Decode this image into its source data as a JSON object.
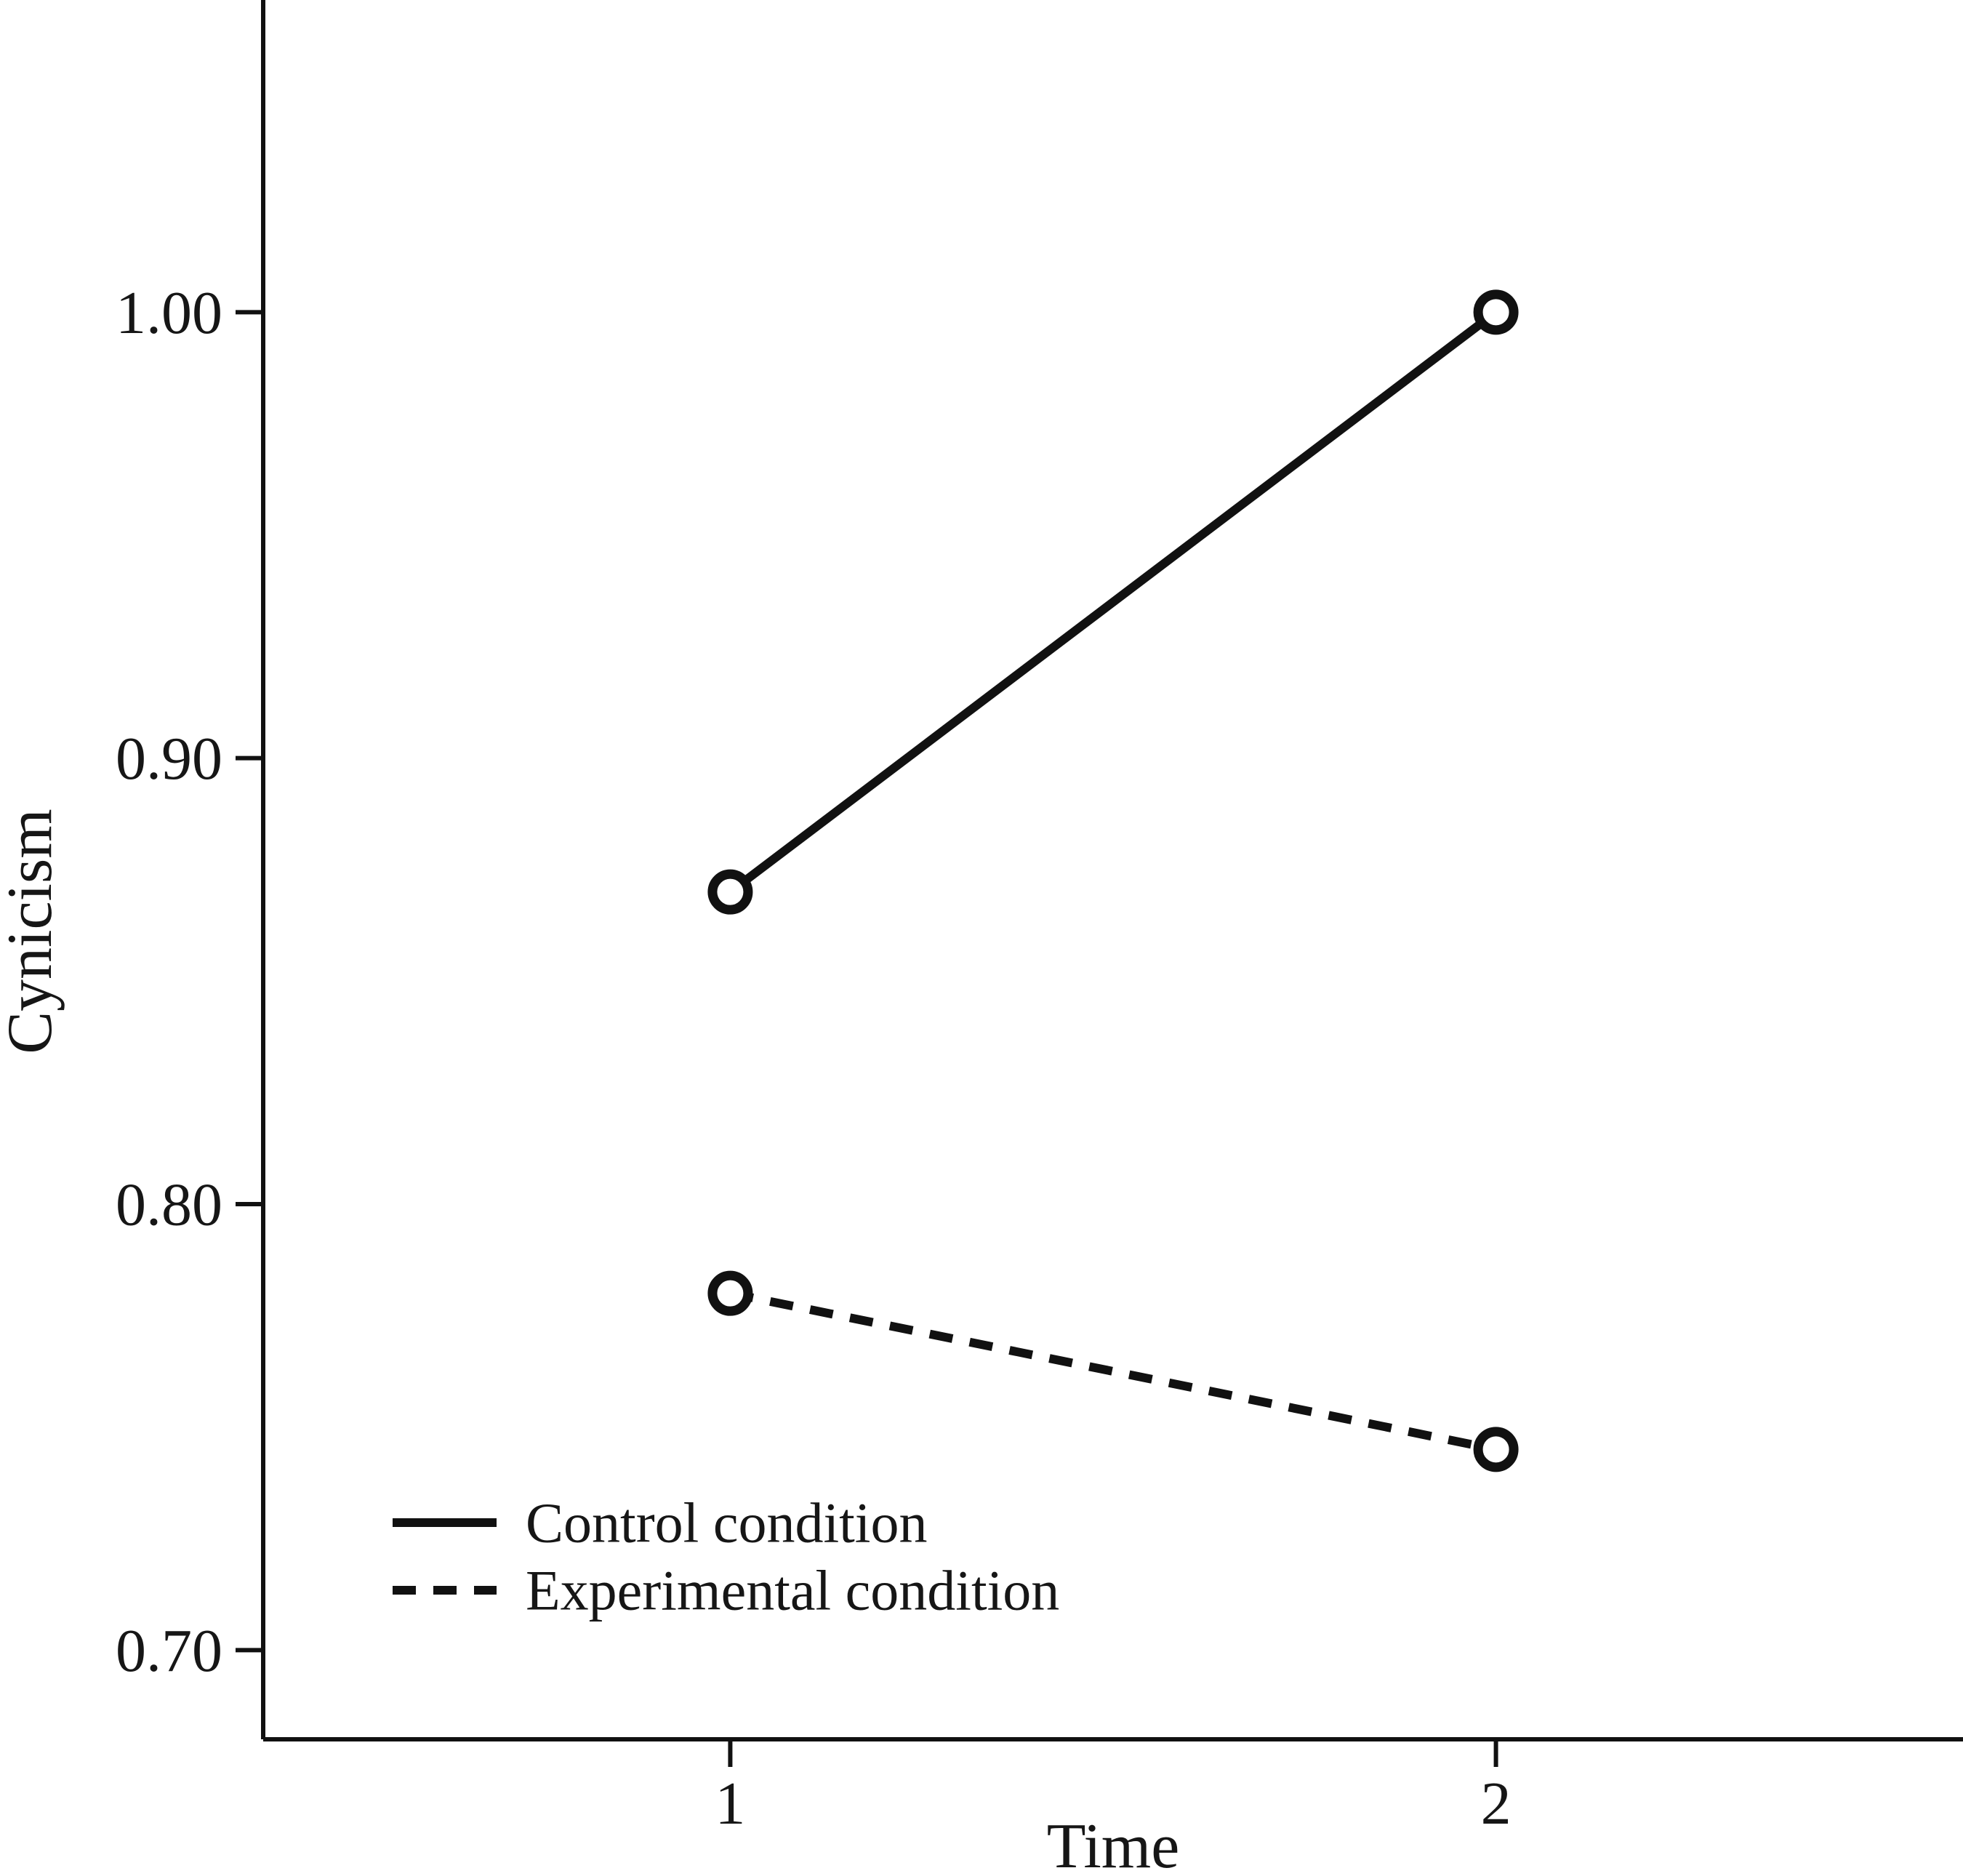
{
  "chart_data": {
    "type": "line",
    "title": "",
    "xlabel": "Time",
    "ylabel": "Cynicism",
    "categories": [
      "1",
      "2"
    ],
    "x_values": [
      1,
      2
    ],
    "x_tick_labels": [
      "1",
      "2"
    ],
    "y_ticks": [
      0.7,
      0.8,
      0.9,
      1.0
    ],
    "y_tick_labels": [
      "0.70",
      "0.80",
      "0.90",
      "1.00"
    ],
    "xlim": [
      0.39,
      2.61
    ],
    "ylim": [
      0.68,
      1.07
    ],
    "grid": false,
    "legend_position": "inside-lower-left",
    "series": [
      {
        "name": "Control condition",
        "style": "solid",
        "marker": "open-circle",
        "values": [
          0.87,
          1.0
        ]
      },
      {
        "name": "Experimental condition",
        "style": "dashed",
        "marker": "open-circle",
        "values": [
          0.78,
          0.745
        ]
      }
    ],
    "colors": {
      "line": "#111111",
      "text": "#161616",
      "marker_fill": "#ffffff",
      "background": "#ffffff"
    }
  }
}
